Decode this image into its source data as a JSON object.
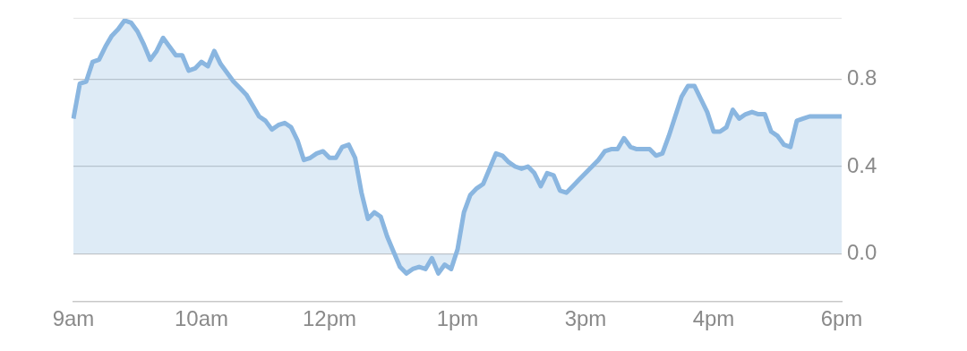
{
  "chart_data": {
    "type": "area",
    "categories": [
      "9am",
      null,
      null,
      null,
      null,
      null,
      null,
      null,
      null,
      null,
      null,
      null,
      null,
      null,
      null,
      null,
      null,
      null,
      null,
      null,
      "10am",
      null,
      null,
      null,
      null,
      null,
      null,
      null,
      null,
      null,
      null,
      null,
      null,
      null,
      null,
      null,
      null,
      null,
      null,
      null,
      "12pm",
      null,
      null,
      null,
      null,
      null,
      null,
      null,
      null,
      null,
      null,
      null,
      null,
      null,
      null,
      null,
      null,
      null,
      null,
      null,
      "1pm",
      null,
      null,
      null,
      null,
      null,
      null,
      null,
      null,
      null,
      null,
      null,
      null,
      null,
      null,
      null,
      null,
      null,
      null,
      null,
      "3pm",
      null,
      null,
      null,
      null,
      null,
      null,
      null,
      null,
      null,
      null,
      null,
      null,
      null,
      null,
      null,
      null,
      null,
      null,
      null,
      "4pm",
      null,
      null,
      null,
      null,
      null,
      null,
      null,
      null,
      null,
      null,
      null,
      null,
      null,
      null,
      null,
      null,
      null,
      null,
      null,
      "6pm"
    ],
    "series": [
      {
        "color": "#8ab6e0",
        "values": [
          0.62,
          0.78,
          0.79,
          0.88,
          0.89,
          0.95,
          1.0,
          1.03,
          1.07,
          1.06,
          1.02,
          0.96,
          0.89,
          0.93,
          0.99,
          0.95,
          0.91,
          0.91,
          0.84,
          0.85,
          0.88,
          0.86,
          0.93,
          0.87,
          0.83,
          0.79,
          0.76,
          0.73,
          0.68,
          0.63,
          0.61,
          0.57,
          0.59,
          0.6,
          0.58,
          0.52,
          0.43,
          0.44,
          0.46,
          0.47,
          0.44,
          0.44,
          0.49,
          0.5,
          0.44,
          0.28,
          0.16,
          0.19,
          0.17,
          0.08,
          0.01,
          -0.06,
          -0.09,
          -0.07,
          -0.06,
          -0.07,
          -0.02,
          -0.09,
          -0.05,
          -0.07,
          0.02,
          0.19,
          0.27,
          0.3,
          0.32,
          0.39,
          0.46,
          0.45,
          0.42,
          0.4,
          0.39,
          0.4,
          0.37,
          0.31,
          0.37,
          0.36,
          0.29,
          0.28,
          0.31,
          0.34,
          0.37,
          0.4,
          0.43,
          0.47,
          0.48,
          0.48,
          0.53,
          0.49,
          0.48,
          0.48,
          0.48,
          0.45,
          0.46,
          0.54,
          0.63,
          0.72,
          0.77,
          0.77,
          0.71,
          0.65,
          0.56,
          0.56,
          0.58,
          0.66,
          0.62,
          0.64,
          0.65,
          0.64,
          0.64,
          0.56,
          0.54,
          0.5,
          0.49,
          0.61,
          0.62,
          0.63,
          0.63,
          0.63,
          0.63,
          0.63,
          0.63
        ]
      }
    ],
    "ylim": [
      -0.22,
      1.08
    ],
    "yticks": [
      {
        "value": 0,
        "label": "0.0"
      },
      0.4,
      0.8
    ],
    "grid": "y"
  }
}
